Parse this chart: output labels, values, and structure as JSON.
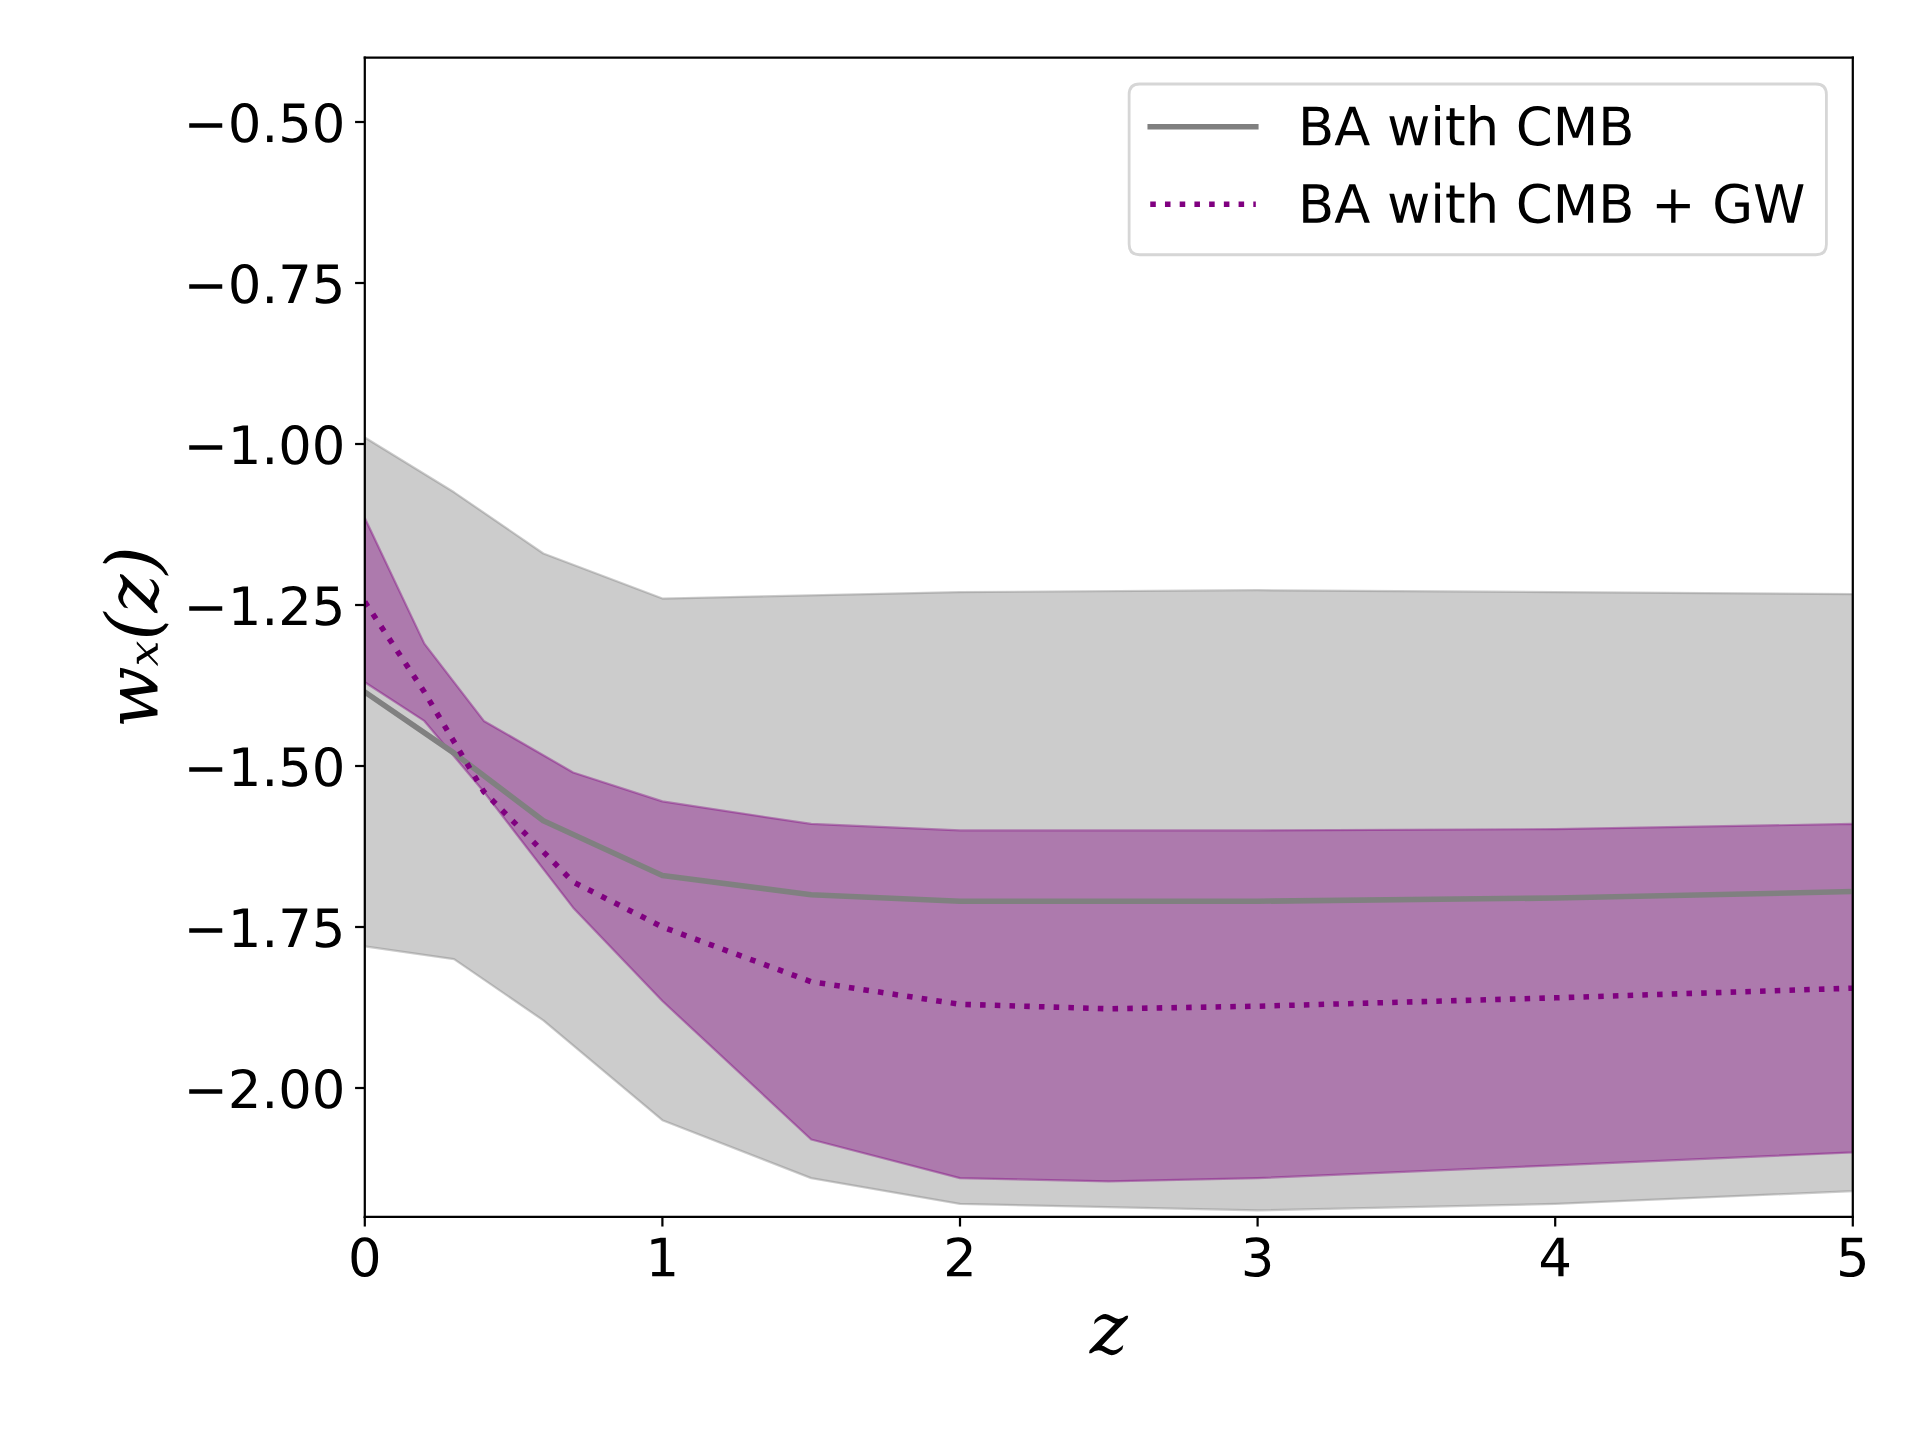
{
  "chart_data": {
    "type": "line",
    "xlabel": "z",
    "ylabel": "wₓ(z)",
    "xlim": [
      0,
      5
    ],
    "ylim": [
      -2.2,
      -0.4
    ],
    "xticks": [
      0,
      1,
      2,
      3,
      4,
      5
    ],
    "yticks": [
      {
        "value": -2.0,
        "label": "−2.00"
      },
      {
        "value": -1.75,
        "label": "−1.75"
      },
      {
        "value": -1.5,
        "label": "−1.50"
      },
      {
        "value": -1.25,
        "label": "−1.25"
      },
      {
        "value": -1.0,
        "label": "−1.00"
      },
      {
        "value": -0.75,
        "label": "−0.75"
      },
      {
        "value": -0.5,
        "label": "−0.50"
      }
    ],
    "grid": false,
    "legend": "top right",
    "marker": "none",
    "series": [
      {
        "name": "BA with CMB",
        "color": "#808080",
        "line_style": "solid",
        "x": [
          0,
          0.3,
          0.6,
          1,
          1.5,
          2,
          3,
          4,
          5
        ],
        "values": [
          -1.385,
          -1.48,
          -1.585,
          -1.67,
          -1.7,
          -1.71,
          -1.71,
          -1.705,
          -1.695
        ],
        "lower": [
          -1.78,
          -1.8,
          -1.895,
          -2.05,
          -2.14,
          -2.18,
          -2.19,
          -2.18,
          -2.16
        ],
        "upper": [
          -0.99,
          -1.075,
          -1.17,
          -1.24,
          -1.235,
          -1.23,
          -1.227,
          -1.23,
          -1.233
        ]
      },
      {
        "name": "BA with CMB + GW",
        "color": "#800080",
        "line_style": "dotted",
        "x": [
          0,
          0.2,
          0.4,
          0.7,
          1,
          1.5,
          2,
          2.5,
          3,
          4,
          5
        ],
        "values": [
          -1.245,
          -1.385,
          -1.54,
          -1.68,
          -1.75,
          -1.835,
          -1.87,
          -1.877,
          -1.873,
          -1.86,
          -1.845
        ],
        "lower": [
          -1.37,
          -1.43,
          -1.54,
          -1.72,
          -1.865,
          -2.08,
          -2.14,
          -2.145,
          -2.14,
          -2.12,
          -2.1
        ],
        "upper": [
          -1.115,
          -1.31,
          -1.43,
          -1.51,
          -1.555,
          -1.59,
          -1.6,
          -1.6,
          -1.6,
          -1.598,
          -1.59
        ]
      }
    ]
  }
}
